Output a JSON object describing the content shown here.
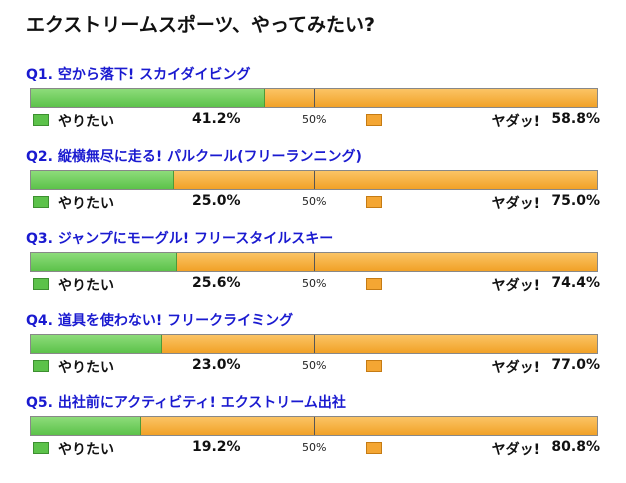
{
  "title": "エクストリームスポーツ、やってみたい?",
  "colors": {
    "yes": "#5cc24a",
    "no": "#f4a633",
    "question": "#1a1ad0"
  },
  "chart_data": {
    "type": "bar",
    "title": "エクストリームスポーツ、やってみたい?",
    "legend": {
      "yes_label": "やりたい",
      "no_label": "ヤダッ!"
    },
    "midpoint_label": "50%",
    "questions": [
      {
        "label": "Q1. 空から落下! スカイダイビング",
        "yes": 41.2,
        "no": 58.8,
        "yes_text": "41.2%",
        "no_text": "58.8%"
      },
      {
        "label": "Q2. 縦横無尽に走る! パルクール(フリーランニング)",
        "yes": 25.0,
        "no": 75.0,
        "yes_text": "25.0%",
        "no_text": "75.0%"
      },
      {
        "label": "Q3. ジャンプにモーグル! フリースタイルスキー",
        "yes": 25.6,
        "no": 74.4,
        "yes_text": "25.6%",
        "no_text": "74.4%"
      },
      {
        "label": "Q4. 道具を使わない! フリークライミング",
        "yes": 23.0,
        "no": 77.0,
        "yes_text": "23.0%",
        "no_text": "77.0%"
      },
      {
        "label": "Q5. 出社前にアクティビティ! エクストリーム出社",
        "yes": 19.2,
        "no": 80.8,
        "yes_text": "19.2%",
        "no_text": "80.8%"
      }
    ]
  }
}
